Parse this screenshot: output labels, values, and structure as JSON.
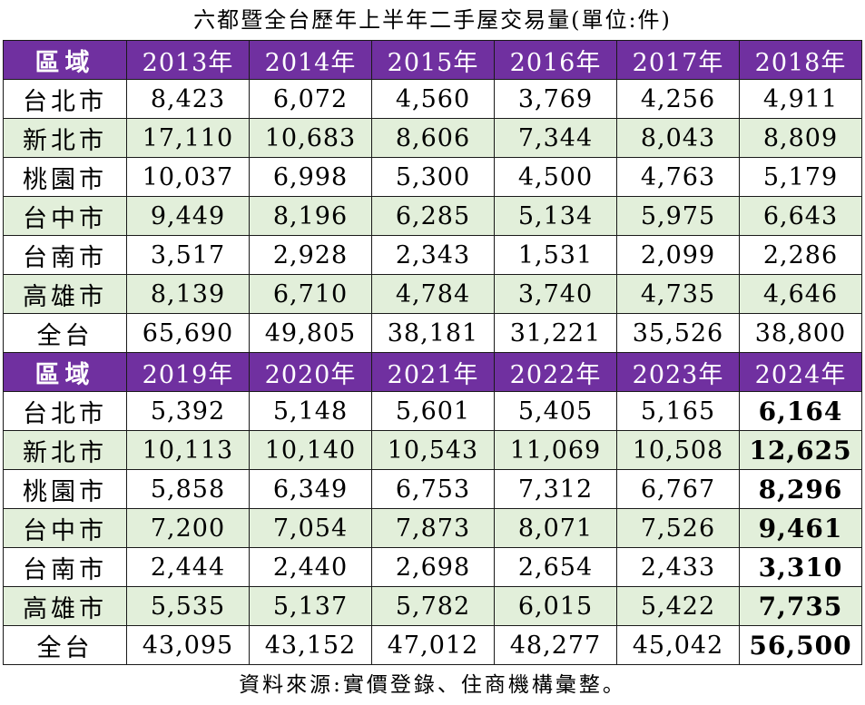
{
  "title": "六都暨全台歷年上半年二手屋交易量(單位:件)",
  "source": "資料來源:實價登錄、住商機構彙整。",
  "colors": {
    "header_bg": "#7030a0",
    "alt_row_bg": "#e2efda",
    "white": "#ffffff"
  },
  "chart_data": {
    "type": "table",
    "title": "六都暨全台歷年上半年二手屋交易量(單位:件)",
    "tables": [
      {
        "region_header": "區域",
        "years": [
          "2013年",
          "2014年",
          "2015年",
          "2016年",
          "2017年",
          "2018年"
        ],
        "rows": [
          {
            "region": "台北市",
            "values": [
              "8,423",
              "6,072",
              "4,560",
              "3,769",
              "4,256",
              "4,911"
            ]
          },
          {
            "region": "新北市",
            "values": [
              "17,110",
              "10,683",
              "8,606",
              "7,344",
              "8,043",
              "8,809"
            ]
          },
          {
            "region": "桃園市",
            "values": [
              "10,037",
              "6,998",
              "5,300",
              "4,500",
              "4,763",
              "5,179"
            ]
          },
          {
            "region": "台中市",
            "values": [
              "9,449",
              "8,196",
              "6,285",
              "5,134",
              "5,975",
              "6,643"
            ]
          },
          {
            "region": "台南市",
            "values": [
              "3,517",
              "2,928",
              "2,343",
              "1,531",
              "2,099",
              "2,286"
            ]
          },
          {
            "region": "高雄市",
            "values": [
              "8,139",
              "6,710",
              "4,784",
              "3,740",
              "4,735",
              "4,646"
            ]
          },
          {
            "region": "全台",
            "values": [
              "65,690",
              "49,805",
              "38,181",
              "31,221",
              "35,526",
              "38,800"
            ]
          }
        ]
      },
      {
        "region_header": "區域",
        "years": [
          "2019年",
          "2020年",
          "2021年",
          "2022年",
          "2023年",
          "2024年"
        ],
        "rows": [
          {
            "region": "台北市",
            "values": [
              "5,392",
              "5,148",
              "5,601",
              "5,405",
              "5,165",
              "6,164"
            ]
          },
          {
            "region": "新北市",
            "values": [
              "10,113",
              "10,140",
              "10,543",
              "11,069",
              "10,508",
              "12,625"
            ]
          },
          {
            "region": "桃園市",
            "values": [
              "5,858",
              "6,349",
              "6,753",
              "7,312",
              "6,767",
              "8,296"
            ]
          },
          {
            "region": "台中市",
            "values": [
              "7,200",
              "7,054",
              "7,873",
              "8,071",
              "7,526",
              "9,461"
            ]
          },
          {
            "region": "台南市",
            "values": [
              "2,444",
              "2,440",
              "2,698",
              "2,654",
              "2,433",
              "3,310"
            ]
          },
          {
            "region": "高雄市",
            "values": [
              "5,535",
              "5,137",
              "5,782",
              "6,015",
              "5,422",
              "7,735"
            ]
          },
          {
            "region": "全台",
            "values": [
              "43,095",
              "43,152",
              "47,012",
              "48,277",
              "45,042",
              "56,500"
            ]
          }
        ]
      }
    ]
  }
}
